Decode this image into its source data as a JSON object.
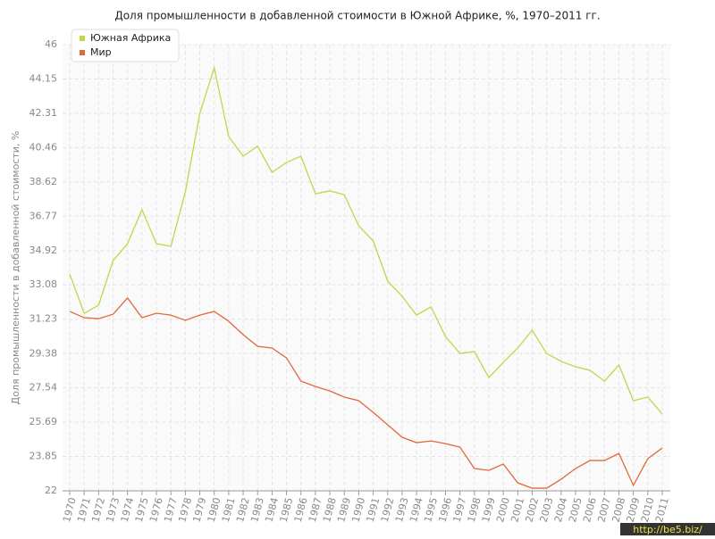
{
  "chart_data": {
    "type": "line",
    "title": "Доля промышленности в добавленной стоимости в Южной Африке, %, 1970–2011 гг.",
    "y_label": "Доля промышленности в добавленной стоимости, %",
    "watermark": "http://be5.biz/",
    "categories": [
      "1970",
      "1971",
      "1972",
      "1973",
      "1974",
      "1975",
      "1976",
      "1977",
      "1978",
      "1979",
      "1980",
      "1981",
      "1982",
      "1983",
      "1984",
      "1985",
      "1986",
      "1987",
      "1988",
      "1989",
      "1990",
      "1991",
      "1992",
      "1993",
      "1994",
      "1995",
      "1996",
      "1997",
      "1998",
      "1999",
      "2000",
      "2001",
      "2002",
      "2003",
      "2004",
      "2005",
      "2006",
      "2007",
      "2008",
      "2009",
      "2010",
      "2011"
    ],
    "series": [
      {
        "name": "Южная Африка",
        "color": "#bcd94a",
        "values": [
          33.66,
          31.55,
          31.98,
          34.38,
          35.29,
          37.12,
          35.29,
          35.15,
          38.08,
          42.3,
          44.75,
          41.06,
          40.0,
          40.53,
          39.13,
          39.66,
          40.0,
          37.98,
          38.13,
          37.93,
          36.25,
          35.44,
          33.28,
          32.46,
          31.45,
          31.89,
          30.3,
          29.39,
          29.49,
          28.09,
          28.91,
          29.68,
          30.64,
          29.39,
          28.96,
          28.67,
          28.48,
          27.9,
          28.77,
          26.85,
          27.04,
          26.13
        ]
      },
      {
        "name": "Мир",
        "color": "#e0693a",
        "values": [
          31.65,
          31.31,
          31.26,
          31.5,
          32.37,
          31.31,
          31.55,
          31.45,
          31.17,
          31.45,
          31.65,
          31.12,
          30.4,
          29.77,
          29.68,
          29.15,
          27.9,
          27.61,
          27.37,
          27.04,
          26.85,
          26.22,
          25.55,
          24.88,
          24.59,
          24.68,
          24.54,
          24.35,
          23.2,
          23.1,
          23.44,
          22.43,
          22.14,
          22.14,
          22.62,
          23.2,
          23.63,
          23.63,
          24.01,
          22.29,
          23.73,
          24.3
        ]
      }
    ],
    "ylim": [
      22,
      46
    ],
    "yticks": [
      22,
      23.85,
      25.69,
      27.54,
      29.38,
      31.23,
      33.08,
      34.92,
      36.77,
      38.62,
      40.46,
      42.31,
      44.15,
      46
    ],
    "grid": true,
    "legend": "top-left"
  }
}
